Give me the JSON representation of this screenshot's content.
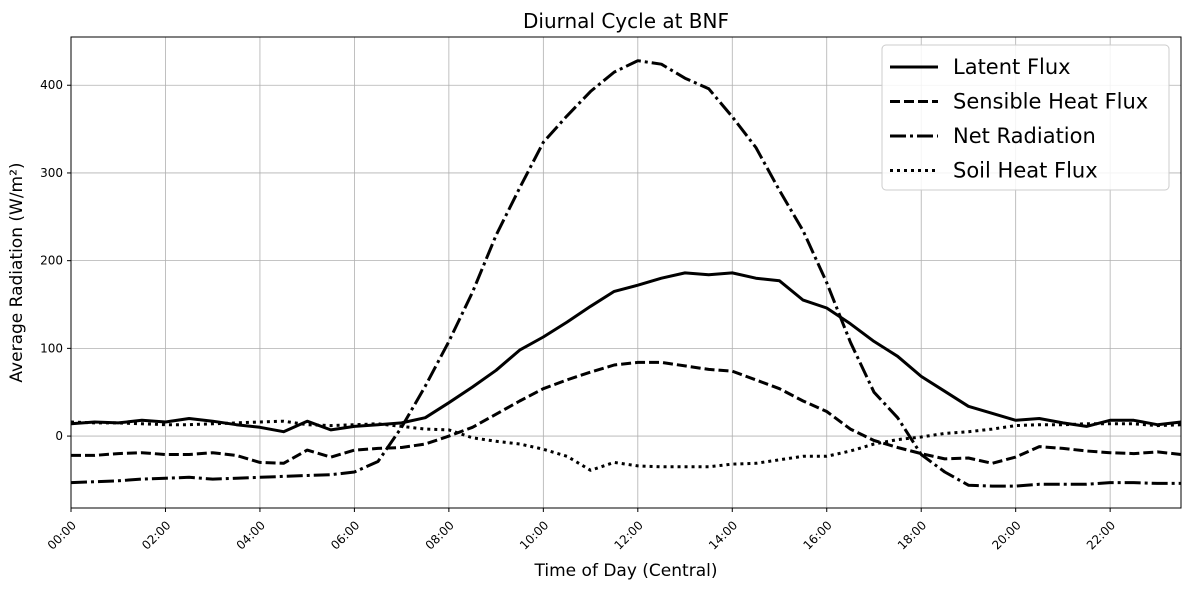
{
  "chart_data": {
    "type": "line",
    "title": "Diurnal Cycle at BNF",
    "xlabel": "Time of Day (Central)",
    "ylabel": "Average Radiation (W/m²)",
    "xlim": [
      "00:00",
      "23:30"
    ],
    "ylim": [
      -82,
      455
    ],
    "x_ticks": [
      "00:00",
      "02:00",
      "04:00",
      "06:00",
      "08:00",
      "10:00",
      "12:00",
      "14:00",
      "16:00",
      "18:00",
      "20:00",
      "22:00"
    ],
    "y_ticks": [
      0,
      100,
      200,
      300,
      400
    ],
    "grid": true,
    "legend_position": "top-right",
    "x": [
      "00:00",
      "00:30",
      "01:00",
      "01:30",
      "02:00",
      "02:30",
      "03:00",
      "03:30",
      "04:00",
      "04:30",
      "05:00",
      "05:30",
      "06:00",
      "06:30",
      "07:00",
      "07:30",
      "08:00",
      "08:30",
      "09:00",
      "09:30",
      "10:00",
      "10:30",
      "11:00",
      "11:30",
      "12:00",
      "12:30",
      "13:00",
      "13:30",
      "14:00",
      "14:30",
      "15:00",
      "15:30",
      "16:00",
      "16:30",
      "17:00",
      "17:30",
      "18:00",
      "18:30",
      "19:00",
      "19:30",
      "20:00",
      "20:30",
      "21:00",
      "21:30",
      "22:00",
      "22:30",
      "23:00",
      "23:30"
    ],
    "series": [
      {
        "name": "Latent Flux",
        "style": "solid",
        "values": [
          14,
          16,
          15,
          18,
          16,
          20,
          17,
          13,
          10,
          5,
          17,
          7,
          11,
          13,
          15,
          21,
          38,
          56,
          75,
          98,
          113,
          130,
          148,
          165,
          172,
          180,
          186,
          184,
          186,
          180,
          177,
          155,
          146,
          128,
          108,
          91,
          68,
          51,
          34,
          26,
          18,
          20,
          15,
          11,
          18,
          18,
          13,
          16
        ]
      },
      {
        "name": "Sensible Heat Flux",
        "style": "dashed",
        "values": [
          -22,
          -22,
          -20,
          -19,
          -21,
          -21,
          -19,
          -22,
          -30,
          -31,
          -16,
          -24,
          -16,
          -14,
          -13,
          -9,
          0,
          10,
          25,
          40,
          54,
          64,
          73,
          81,
          84,
          84,
          80,
          76,
          74,
          64,
          54,
          40,
          28,
          8,
          -5,
          -13,
          -20,
          -26,
          -25,
          -31,
          -24,
          -12,
          -14,
          -17,
          -19,
          -20,
          -18,
          -21
        ]
      },
      {
        "name": "Net Radiation",
        "style": "dashdot",
        "values": [
          -53,
          -52,
          -51,
          -49,
          -48,
          -47,
          -49,
          -48,
          -47,
          -46,
          -45,
          -44,
          -41,
          -29,
          10,
          57,
          108,
          164,
          229,
          283,
          335,
          365,
          393,
          415,
          428,
          424,
          408,
          396,
          364,
          329,
          280,
          234,
          175,
          107,
          50,
          21,
          -21,
          -41,
          -56,
          -57,
          -57,
          -55,
          -55,
          -55,
          -53,
          -53,
          -54,
          -54
        ]
      },
      {
        "name": "Soil Heat Flux",
        "style": "dotted",
        "values": [
          16,
          15,
          15,
          14,
          13,
          13,
          14,
          15,
          16,
          17,
          13,
          12,
          13,
          14,
          11,
          8,
          7,
          -2,
          -6,
          -9,
          -15,
          -23,
          -39,
          -30,
          -34,
          -35,
          -35,
          -35,
          -32,
          -31,
          -27,
          -23,
          -23,
          -17,
          -9,
          -4,
          -1,
          3,
          5,
          8,
          12,
          13,
          13,
          14,
          14,
          14,
          12,
          13
        ]
      }
    ]
  }
}
